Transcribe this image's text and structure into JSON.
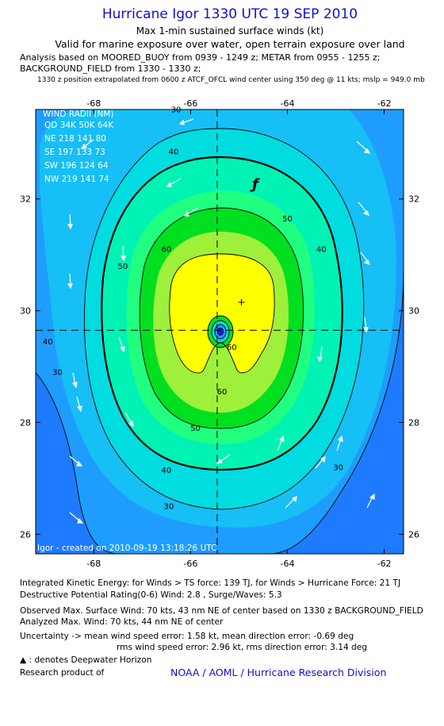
{
  "header": {
    "title": "Hurricane Igor 1330 UTC 19 SEP 2010",
    "subtitle": "Max 1-min sustained surface winds (kt)",
    "validity": "Valid for marine exposure over water, open terrain exposure over land",
    "analysis_line1": "Analysis based on MOORED_BUOY from 0939 - 1249 z; METAR from 0955 - 1255 z;",
    "analysis_line2": "BACKGROUND_FIELD from 1330 - 1330 z;",
    "position_note": "1330 z position extrapolated from 0600 z ATCF_OFCL wind center using 350 deg @ 11 kts; mslp = 949.0 mb"
  },
  "wind_radii": {
    "title": "WIND RADII (NM)",
    "header": "QD 34K 50K 64K",
    "rows": [
      "NE 218 141  80",
      "SE 197 133  73",
      "SW 196 124  64",
      "NW 219 141  74"
    ]
  },
  "stamp": "Igor - created on 2010-09-19 13:18:26 UTC",
  "footer": {
    "ike": "Integrated Kinetic Energy:  for Winds > TS force: 139 TJ,  for Winds > Hurricane Force: 21 TJ",
    "dpr": "Destructive Potential Rating(0-6)   Wind: 2.8 , Surge/Waves: 5.3",
    "obs": "Observed Max. Surface Wind: 70 kts, 43 nm NE of center based on 1330 z BACKGROUND_FIELD",
    "analyzed": "Analyzed Max. Wind: 70 kts, 44 nm NE of center",
    "uncert1": "Uncertainty -> mean wind speed error: 1.58 kt,   mean direction error:  -0.69 deg",
    "uncert2": "rms wind speed error: 2.96 kt,   rms direction error: 3.14 deg",
    "legend_symbol": "▲",
    "legend_text": " : denotes Deepwater Horizon",
    "research": "Research product of",
    "org": "NOAA / AOML / Hurricane Research Division"
  },
  "chart_data": {
    "type": "contour",
    "title": "Hurricane Igor 1330 UTC 19 SEP 2010",
    "x_label": "",
    "y_label": "",
    "x_ticks": [
      -68,
      -66,
      -64,
      -62
    ],
    "y_ticks": [
      26,
      28,
      30,
      32
    ],
    "x_range": [
      -69.2,
      -61.6
    ],
    "y_range": [
      25.65,
      33.6
    ],
    "center": {
      "lon": -65.45,
      "lat": 29.65
    },
    "max_wind_marker": {
      "lon": -64.95,
      "lat": 30.15
    },
    "contour_levels": [
      30,
      40,
      50,
      60,
      70
    ],
    "contour_labels": [
      {
        "text": "30",
        "lon": -66.3,
        "lat": 33.55
      },
      {
        "text": "40",
        "lon": -66.35,
        "lat": 32.8
      },
      {
        "text": "50",
        "lon": -64.0,
        "lat": 31.6
      },
      {
        "text": "60",
        "lon": -66.5,
        "lat": 31.05
      },
      {
        "text": "50",
        "lon": -67.4,
        "lat": 30.75
      },
      {
        "text": "40",
        "lon": -63.3,
        "lat": 31.05
      },
      {
        "text": "40",
        "lon": -68.95,
        "lat": 29.4
      },
      {
        "text": "30",
        "lon": -68.75,
        "lat": 28.85
      },
      {
        "text": "60",
        "lon": -65.15,
        "lat": 29.3
      },
      {
        "text": "60",
        "lon": -65.35,
        "lat": 28.5
      },
      {
        "text": "50",
        "lon": -65.9,
        "lat": 27.85
      },
      {
        "text": "40",
        "lon": -66.5,
        "lat": 27.1
      },
      {
        "text": "30",
        "lon": -66.45,
        "lat": 26.45
      },
      {
        "text": "30",
        "lon": -62.95,
        "lat": 27.15
      }
    ],
    "fill_colors": [
      "#1e7bff",
      "#1e9dff",
      "#16bff5",
      "#00dce0",
      "#00f2b4",
      "#20ff80",
      "#00e020",
      "#9ef03a",
      "#ffff00",
      "#2020ff"
    ]
  }
}
